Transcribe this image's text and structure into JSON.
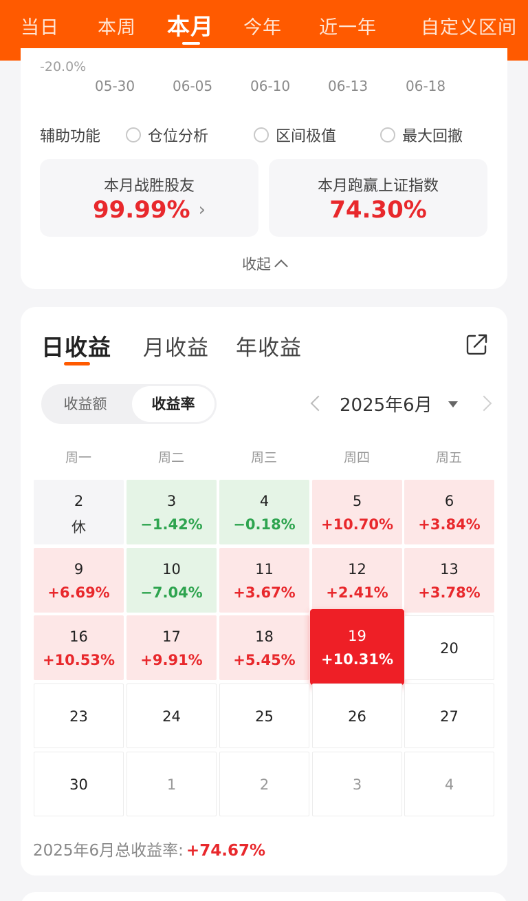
{
  "top_tabs": [
    {
      "label": "当日",
      "active": false
    },
    {
      "label": "本周",
      "active": false
    },
    {
      "label": "本月",
      "active": true
    },
    {
      "label": "今年",
      "active": false
    },
    {
      "label": "近一年",
      "active": false
    },
    {
      "label": "自定义区间",
      "active": false
    }
  ],
  "chart": {
    "y_label": "-20.0%",
    "x_ticks": [
      "05-30",
      "06-05",
      "06-10",
      "06-13",
      "06-18"
    ]
  },
  "aux": {
    "title": "辅助功能",
    "options": [
      "仓位分析",
      "区间极值",
      "最大回撤"
    ]
  },
  "stats": [
    {
      "label": "本月战胜股友",
      "value": "99.99%",
      "chevron": "›"
    },
    {
      "label": "本月跑赢上证指数",
      "value": "74.30%"
    }
  ],
  "collapse_label": "收起",
  "returns_tabs": [
    {
      "label": "日收益",
      "active": true
    },
    {
      "label": "月收益",
      "active": false
    },
    {
      "label": "年收益",
      "active": false
    }
  ],
  "toggle": {
    "options": [
      "收益额",
      "收益率"
    ],
    "selected": "收益率"
  },
  "month": "2025年6月",
  "weekdays": [
    "周一",
    "周二",
    "周三",
    "周四",
    "周五"
  ],
  "calendar": [
    [
      {
        "day": "2",
        "pct": "休",
        "kind": "gray"
      },
      {
        "day": "3",
        "pct": "−1.42%",
        "kind": "green"
      },
      {
        "day": "4",
        "pct": "−0.18%",
        "kind": "green"
      },
      {
        "day": "5",
        "pct": "+10.70%",
        "kind": "red"
      },
      {
        "day": "6",
        "pct": "+3.84%",
        "kind": "red"
      }
    ],
    [
      {
        "day": "9",
        "pct": "+6.69%",
        "kind": "red"
      },
      {
        "day": "10",
        "pct": "−7.04%",
        "kind": "green"
      },
      {
        "day": "11",
        "pct": "+3.67%",
        "kind": "red"
      },
      {
        "day": "12",
        "pct": "+2.41%",
        "kind": "red"
      },
      {
        "day": "13",
        "pct": "+3.78%",
        "kind": "red"
      }
    ],
    [
      {
        "day": "16",
        "pct": "+10.53%",
        "kind": "red"
      },
      {
        "day": "17",
        "pct": "+9.91%",
        "kind": "red"
      },
      {
        "day": "18",
        "pct": "+5.45%",
        "kind": "red"
      },
      {
        "day": "19",
        "pct": "+10.31%",
        "kind": "today"
      },
      {
        "day": "20",
        "pct": "",
        "kind": "empty"
      }
    ],
    [
      {
        "day": "23",
        "pct": "",
        "kind": "empty"
      },
      {
        "day": "24",
        "pct": "",
        "kind": "empty"
      },
      {
        "day": "25",
        "pct": "",
        "kind": "empty"
      },
      {
        "day": "26",
        "pct": "",
        "kind": "empty"
      },
      {
        "day": "27",
        "pct": "",
        "kind": "empty"
      }
    ],
    [
      {
        "day": "30",
        "pct": "",
        "kind": "empty"
      },
      {
        "day": "1",
        "pct": "",
        "kind": "muted"
      },
      {
        "day": "2",
        "pct": "",
        "kind": "muted"
      },
      {
        "day": "3",
        "pct": "",
        "kind": "muted"
      },
      {
        "day": "4",
        "pct": "",
        "kind": "muted"
      }
    ]
  ],
  "total": {
    "label": "2025年6月总收益率:",
    "value": "+74.67%"
  },
  "colors": {
    "brand": "#ff5a00",
    "up": "#e8282c",
    "down": "#2ea44f",
    "today": "#ee1f26"
  }
}
